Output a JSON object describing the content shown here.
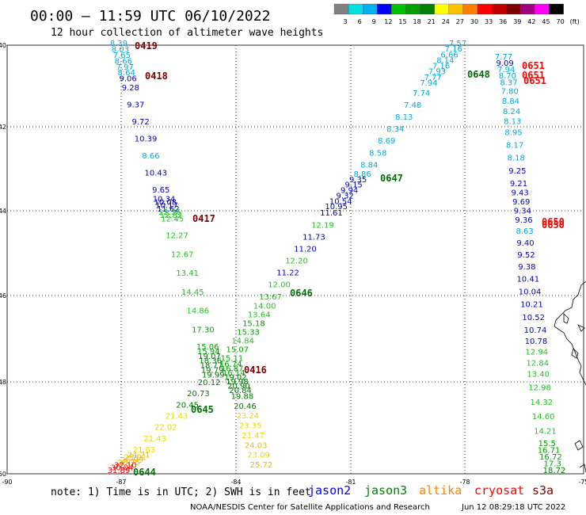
{
  "header": {
    "title": "00:00 – 11:59 UTC 06/10/2022",
    "subtitle": "12 hour collection of altimeter wave heights"
  },
  "color_scale": {
    "labels": [
      "3",
      "6",
      "9",
      "12",
      "15",
      "18",
      "21",
      "24",
      "27",
      "30",
      "33",
      "36",
      "39",
      "42",
      "45",
      "70",
      "(ft)"
    ],
    "colors": [
      "#808080",
      "#00e0e0",
      "#00b0f0",
      "#0000ff",
      "#00c000",
      "#00a000",
      "#008000",
      "#ffff00",
      "#ffc000",
      "#ff8000",
      "#ff0000",
      "#c00000",
      "#800000",
      "#a00080",
      "#ff00ff",
      "#000000"
    ]
  },
  "map": {
    "lat_ticks": [
      "40",
      "42",
      "44",
      "46",
      "48",
      "50"
    ],
    "lon_ticks": [
      "-90",
      "-87",
      "-84",
      "-81",
      "-78",
      "-75"
    ],
    "track_0418": {
      "labels": [
        "0419",
        "0418",
        "0417",
        "0416"
      ],
      "values": [
        "8.39",
        "8.03",
        "7.65",
        "8.66",
        "7.97",
        "8.64",
        "9.06",
        "9.28",
        "9.37",
        "9.72",
        "10.39",
        "8.66",
        "10.43",
        "9.65",
        "10.34",
        "10.08",
        "10.17",
        "11.62",
        "12.36",
        "12.82",
        "12.45",
        "12.27",
        "12.67",
        "13.41",
        "14.45",
        "14.86",
        "17.30",
        "15.06",
        "15.94",
        "19.07",
        "18.36",
        "18.77",
        "19.79",
        "19.99",
        "20.12",
        "20.73",
        "20.45",
        "21.43",
        "22.02",
        "21.43",
        "21.63",
        "24.21",
        "25.01",
        "26.99",
        "26.75",
        "32.10",
        "30.04",
        "31.89"
      ]
    },
    "track_0645": {
      "labels": [
        "0648",
        "0647",
        "0646",
        "0645",
        "0644"
      ],
      "values": [
        "7.57",
        "7.16",
        "6.66",
        "8.14",
        "7.16",
        "7.93",
        "7.77",
        "7.94",
        "7.74",
        "7.48",
        "8.13",
        "8.34",
        "8.69",
        "8.58",
        "8.84",
        "8.86",
        "9.35",
        "9.15",
        "9.94",
        "9.32",
        "10.54",
        "10.95",
        "11.61",
        "12.19",
        "11.73",
        "11.20",
        "12.20",
        "11.22",
        "12.00",
        "13.67",
        "14.00",
        "13.64",
        "15.18",
        "15.33",
        "14.84",
        "15.07",
        "15.11",
        "16.74",
        "16.87",
        "16.14",
        "19.02",
        "19.98",
        "20.90",
        "20.84",
        "19.88",
        "20.46",
        "23.24",
        "23.35",
        "21.47",
        "24.03",
        "23.09",
        "25.72"
      ]
    },
    "track_0651": {
      "labels": [
        "0651",
        "0651",
        "0651",
        "0650",
        "0650"
      ],
      "values": [
        "7.77",
        "9.09",
        "7.94",
        "8.70",
        "8.37",
        "7.80",
        "8.84",
        "8.24",
        "8.13",
        "8.95",
        "8.17",
        "8.18",
        "9.25",
        "9.21",
        "9.43",
        "9.69",
        "9.34",
        "9.36",
        "8.63",
        "9.40",
        "9.52",
        "9.38",
        "10.41",
        "10.04",
        "10.21",
        "10.52",
        "10.74",
        "10.78",
        "12.94",
        "12.84",
        "13.40",
        "12.98",
        "14.32",
        "14.60",
        "14.21",
        "15.5",
        "16.71",
        "16.72",
        "17.3",
        "18.72"
      ]
    }
  },
  "footer": {
    "note": "note: 1) Time is in UTC; 2) SWH is in feet",
    "legend": [
      {
        "name": "jason2",
        "color": "#0000ff"
      },
      {
        "name": "jason3",
        "color": "#008000"
      },
      {
        "name": "altika",
        "color": "#ff8000"
      },
      {
        "name": "cryosat",
        "color": "#ff0000"
      },
      {
        "name": "s3a",
        "color": "#800000"
      }
    ],
    "credit_left": "NOAA/NESDIS Center for Satellite Applications and Research",
    "credit_right": "Jun 12 08:29:18 UTC 2022"
  }
}
